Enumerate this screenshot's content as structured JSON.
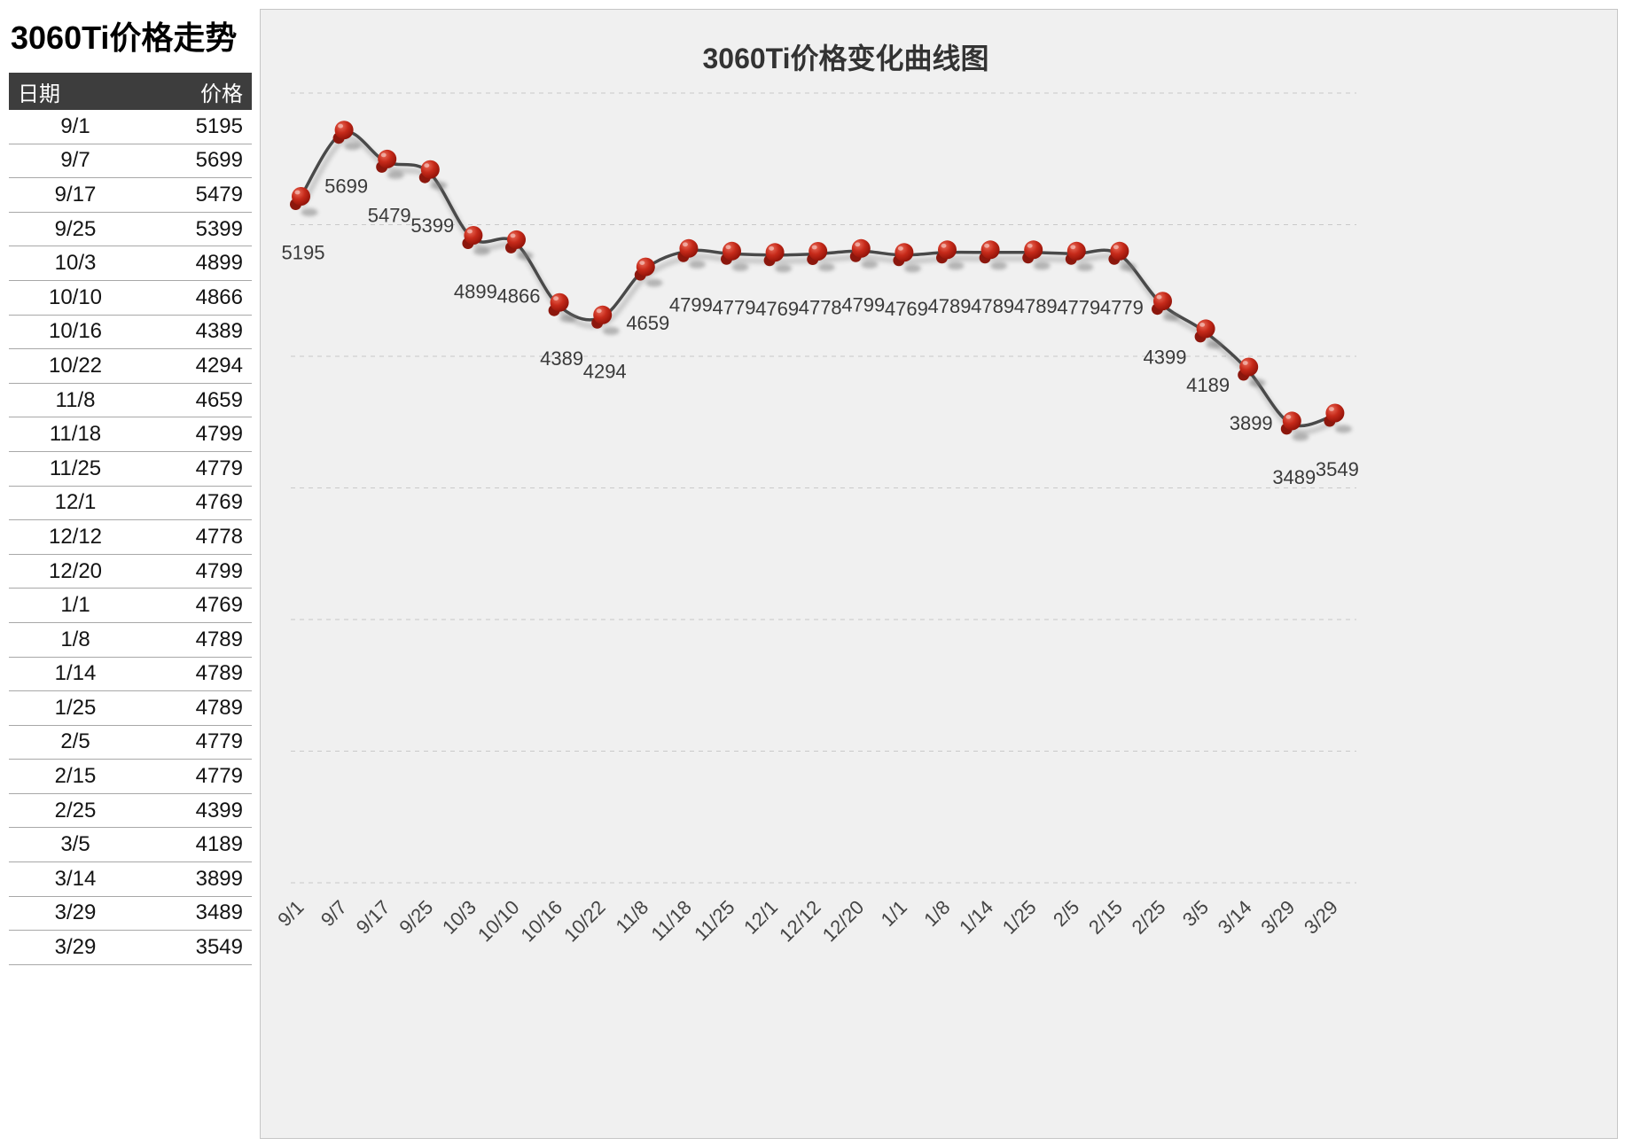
{
  "left_panel": {
    "title": "3060Ti价格走势",
    "table": {
      "columns": [
        "日期",
        "价格"
      ],
      "rows": [
        [
          "9/1",
          "5195"
        ],
        [
          "9/7",
          "5699"
        ],
        [
          "9/17",
          "5479"
        ],
        [
          "9/25",
          "5399"
        ],
        [
          "10/3",
          "4899"
        ],
        [
          "10/10",
          "4866"
        ],
        [
          "10/16",
          "4389"
        ],
        [
          "10/22",
          "4294"
        ],
        [
          "11/8",
          "4659"
        ],
        [
          "11/18",
          "4799"
        ],
        [
          "11/25",
          "4779"
        ],
        [
          "12/1",
          "4769"
        ],
        [
          "12/12",
          "4778"
        ],
        [
          "12/20",
          "4799"
        ],
        [
          "1/1",
          "4769"
        ],
        [
          "1/8",
          "4789"
        ],
        [
          "1/14",
          "4789"
        ],
        [
          "1/25",
          "4789"
        ],
        [
          "2/5",
          "4779"
        ],
        [
          "2/15",
          "4779"
        ],
        [
          "2/25",
          "4399"
        ],
        [
          "3/5",
          "4189"
        ],
        [
          "3/14",
          "3899"
        ],
        [
          "3/29",
          "3489"
        ],
        [
          "3/29",
          "3549"
        ]
      ]
    }
  },
  "chart_data": {
    "type": "line",
    "title": "3060Ti价格变化曲线图",
    "categories": [
      "9/1",
      "9/7",
      "9/17",
      "9/25",
      "10/3",
      "10/10",
      "10/16",
      "10/22",
      "11/8",
      "11/18",
      "11/25",
      "12/1",
      "12/12",
      "12/20",
      "1/1",
      "1/8",
      "1/14",
      "1/25",
      "2/5",
      "2/15",
      "2/25",
      "3/5",
      "3/14",
      "3/29",
      "3/29"
    ],
    "values": [
      5195,
      5699,
      5479,
      5399,
      4899,
      4866,
      4389,
      4294,
      4659,
      4799,
      4779,
      4769,
      4778,
      4799,
      4769,
      4789,
      4789,
      4789,
      4779,
      4779,
      4399,
      4189,
      3899,
      3489,
      3549
    ],
    "xlabel": "",
    "ylabel": "",
    "ylim": [
      0,
      6000
    ],
    "grid_step": 1000,
    "grid": "horizontal-dashed",
    "legend_position": "none",
    "x_label_rotation": 45,
    "point_labels_visible": true,
    "smooth": true,
    "line_color": "#4a4a4a",
    "marker": "red-pushpin",
    "marker_color": "#b3251a",
    "marker_dark_color": "#8c170d",
    "marker_shadow_color": "#777777",
    "label_color": "#3a3a3a",
    "axis_label_color": "#444444",
    "grid_color": "#c9c9c9",
    "panel_bg": "#f0f0f0"
  }
}
